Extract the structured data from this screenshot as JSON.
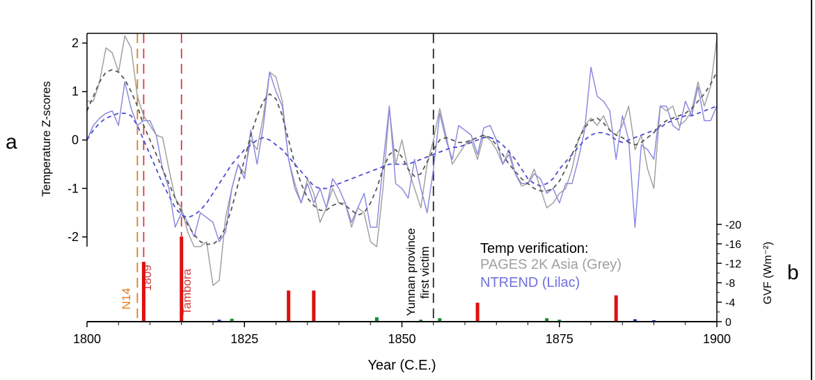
{
  "panel_labels": {
    "a": "a",
    "b": "b"
  },
  "chart_data": {
    "type": "line",
    "xlabel": "Year (C.E.)",
    "ylabel": "Temperature Z-scores",
    "y2label": "GVF (Wm⁻²)",
    "xlim": [
      1800,
      1900
    ],
    "ylim": [
      -2.2,
      2.2
    ],
    "y2lim": [
      0,
      -21
    ],
    "x_ticks": [
      1800,
      1825,
      1850,
      1875,
      1900
    ],
    "y_ticks": [
      2,
      1,
      0,
      -1,
      -2
    ],
    "y2_ticks": [
      -20,
      -16,
      -12,
      -8,
      -4,
      0
    ],
    "legend": {
      "title": "Temp verification:",
      "items": [
        {
          "label": "PAGES 2K Asia (Grey)",
          "color": "#a0a0a0"
        },
        {
          "label": "NTREND (Lilac)",
          "color": "#7070dd"
        }
      ]
    },
    "events": [
      {
        "label": "N14",
        "year": 1808,
        "color": "#e07a1a"
      },
      {
        "label": "1809",
        "year": 1809,
        "color": "#d43a3a"
      },
      {
        "label": "Tambora",
        "year": 1815,
        "color": "#d43a3a"
      },
      {
        "label": "Yunnan province first victim",
        "year": 1855,
        "color": "#222222"
      }
    ],
    "forcing_bars": [
      {
        "year": 1809,
        "gvf": -12.3,
        "color": "#e01010"
      },
      {
        "year": 1815,
        "gvf": -17.5,
        "color": "#e01010"
      },
      {
        "year": 1821,
        "gvf": -0.4,
        "color": "#1030c0"
      },
      {
        "year": 1823,
        "gvf": -0.6,
        "color": "#109030"
      },
      {
        "year": 1832,
        "gvf": -6.4,
        "color": "#e01010"
      },
      {
        "year": 1836,
        "gvf": -6.4,
        "color": "#e01010"
      },
      {
        "year": 1846,
        "gvf": -0.9,
        "color": "#109030"
      },
      {
        "year": 1853,
        "gvf": -0.4,
        "color": "#109030"
      },
      {
        "year": 1856,
        "gvf": -0.7,
        "color": "#109030"
      },
      {
        "year": 1862,
        "gvf": -3.9,
        "color": "#e01010"
      },
      {
        "year": 1873,
        "gvf": -0.7,
        "color": "#109030"
      },
      {
        "year": 1875,
        "gvf": -0.4,
        "color": "#109030"
      },
      {
        "year": 1884,
        "gvf": -5.4,
        "color": "#e01010"
      },
      {
        "year": 1887,
        "gvf": -0.5,
        "color": "#1030c0"
      },
      {
        "year": 1890,
        "gvf": -0.3,
        "color": "#1030c0"
      }
    ],
    "series": [
      {
        "name": "PAGES 2K Asia (Grey)",
        "color": "#a0a0a0",
        "style": "solid",
        "x_start": 1800,
        "values": [
          0.8,
          0.8,
          1.2,
          1.9,
          1.8,
          1.4,
          2.15,
          1.9,
          0.9,
          0.5,
          0.3,
          0.1,
          0.05,
          -0.6,
          -1.2,
          -1.4,
          -1.9,
          -2.2,
          -2.2,
          -2.1,
          -3.0,
          -2.9,
          -1.6,
          -1.0,
          -0.5,
          -0.7,
          0.0,
          -0.2,
          0.5,
          1.4,
          1.3,
          0.8,
          -0.4,
          -0.9,
          -1.3,
          -0.8,
          -1.1,
          -1.7,
          -1.4,
          -1.0,
          -1.3,
          -1.3,
          -1.8,
          -1.4,
          -1.5,
          -2.1,
          -2.2,
          -1.0,
          0.65,
          -0.5,
          0.0,
          -0.6,
          -1.0,
          -1.4,
          -0.5,
          0.0,
          0.65,
          0.1,
          -0.5,
          -0.3,
          -0.1,
          0.0,
          -0.4,
          0.1,
          0.0,
          -0.2,
          -0.5,
          -0.2,
          -0.7,
          -0.95,
          -0.9,
          -0.6,
          -1.0,
          -1.4,
          -1.3,
          -1.1,
          -1.0,
          -0.6,
          0.0,
          0.3,
          0.45,
          0.3,
          0.5,
          0.2,
          0.1,
          0.3,
          0.7,
          -0.2,
          0.1,
          -0.6,
          -1.0,
          0.7,
          0.6,
          0.7,
          0.3,
          0.4,
          0.6,
          1.2,
          0.7,
          1.1,
          2.1
        ]
      },
      {
        "name": "NTREND (Lilac)",
        "color": "#8a8ae0",
        "style": "solid",
        "x_start": 1800,
        "values": [
          0.0,
          0.3,
          0.45,
          0.55,
          0.6,
          0.3,
          1.2,
          0.65,
          0.3,
          0.4,
          0.4,
          0.1,
          -0.6,
          -1.0,
          -1.8,
          -1.5,
          -1.7,
          -2.0,
          -1.5,
          -1.6,
          -1.7,
          -2.1,
          -1.9,
          -1.0,
          -0.5,
          -0.8,
          0.2,
          -0.5,
          0.3,
          1.4,
          1.0,
          0.7,
          -0.4,
          -1.0,
          -1.3,
          -0.9,
          -1.3,
          -1.0,
          -1.4,
          -0.8,
          -1.0,
          -1.3,
          -1.7,
          -1.4,
          -1.1,
          -1.8,
          -1.8,
          -0.5,
          0.7,
          -0.9,
          -1.0,
          -1.2,
          -0.4,
          -1.0,
          -1.5,
          -0.6,
          0.55,
          0.0,
          -0.4,
          0.3,
          0.2,
          0.1,
          -0.3,
          0.25,
          0.3,
          0.0,
          -0.5,
          -0.3,
          -0.7,
          -0.9,
          -0.9,
          -0.7,
          -0.8,
          -1.1,
          -1.0,
          -1.3,
          -0.9,
          -0.9,
          -0.4,
          0.2,
          1.5,
          0.9,
          0.8,
          0.6,
          -0.4,
          0.5,
          0.0,
          -1.8,
          -0.1,
          -0.2,
          -0.4,
          0.7,
          0.7,
          0.3,
          0.2,
          0.8,
          0.5,
          1.1,
          0.4,
          0.4,
          0.7
        ]
      },
      {
        "name": "",
        "color": "#555555",
        "style": "dashed",
        "x_start": 1800,
        "values": [
          0.6,
          0.9,
          1.2,
          1.4,
          1.45,
          1.4,
          1.25,
          1.0,
          0.7,
          0.3,
          0.0,
          -0.3,
          -0.6,
          -0.9,
          -1.2,
          -1.5,
          -1.75,
          -1.95,
          -2.1,
          -2.15,
          -2.15,
          -2.05,
          -1.8,
          -1.4,
          -0.9,
          -0.4,
          0.1,
          0.5,
          0.8,
          0.95,
          0.85,
          0.5,
          0.0,
          -0.5,
          -0.9,
          -1.2,
          -1.35,
          -1.45,
          -1.45,
          -1.35,
          -1.3,
          -1.35,
          -1.45,
          -1.55,
          -1.5,
          -1.3,
          -1.0,
          -0.6,
          -0.3,
          -0.2,
          -0.35,
          -0.6,
          -0.75,
          -0.7,
          -0.45,
          -0.2,
          0.0,
          0.05,
          0.0,
          -0.05,
          -0.05,
          0.0,
          0.05,
          0.1,
          0.05,
          -0.1,
          -0.3,
          -0.5,
          -0.65,
          -0.8,
          -0.9,
          -1.0,
          -1.05,
          -1.05,
          -1.0,
          -0.85,
          -0.6,
          -0.3,
          0.0,
          0.25,
          0.4,
          0.45,
          0.35,
          0.2,
          0.1,
          0.05,
          -0.05,
          -0.1,
          -0.05,
          0.05,
          0.15,
          0.3,
          0.4,
          0.45,
          0.5,
          0.55,
          0.65,
          0.8,
          0.95,
          1.15,
          1.4
        ]
      },
      {
        "name": "",
        "color": "#4a4ad0",
        "style": "dashed",
        "x_start": 1800,
        "values": [
          0.0,
          0.2,
          0.35,
          0.45,
          0.5,
          0.55,
          0.55,
          0.5,
          0.3,
          0.0,
          -0.3,
          -0.6,
          -0.9,
          -1.15,
          -1.4,
          -1.55,
          -1.6,
          -1.55,
          -1.45,
          -1.3,
          -1.1,
          -0.9,
          -0.7,
          -0.5,
          -0.35,
          -0.2,
          -0.1,
          0.0,
          0.05,
          0.0,
          -0.1,
          -0.2,
          -0.35,
          -0.5,
          -0.65,
          -0.8,
          -0.95,
          -1.0,
          -1.0,
          -0.95,
          -0.9,
          -0.85,
          -0.8,
          -0.75,
          -0.7,
          -0.65,
          -0.6,
          -0.55,
          -0.5,
          -0.5,
          -0.5,
          -0.5,
          -0.45,
          -0.4,
          -0.35,
          -0.3,
          -0.25,
          -0.2,
          -0.15,
          -0.15,
          -0.1,
          -0.05,
          0.0,
          0.05,
          0.05,
          0.0,
          -0.1,
          -0.25,
          -0.4,
          -0.6,
          -0.8,
          -0.9,
          -0.95,
          -0.9,
          -0.8,
          -0.6,
          -0.45,
          -0.3,
          -0.15,
          0.0,
          0.1,
          0.15,
          0.15,
          0.1,
          0.0,
          -0.05,
          0.0,
          0.05,
          0.1,
          0.15,
          0.2,
          0.25,
          0.35,
          0.4,
          0.45,
          0.5,
          0.5,
          0.55,
          0.6,
          0.65,
          0.7
        ]
      }
    ]
  }
}
